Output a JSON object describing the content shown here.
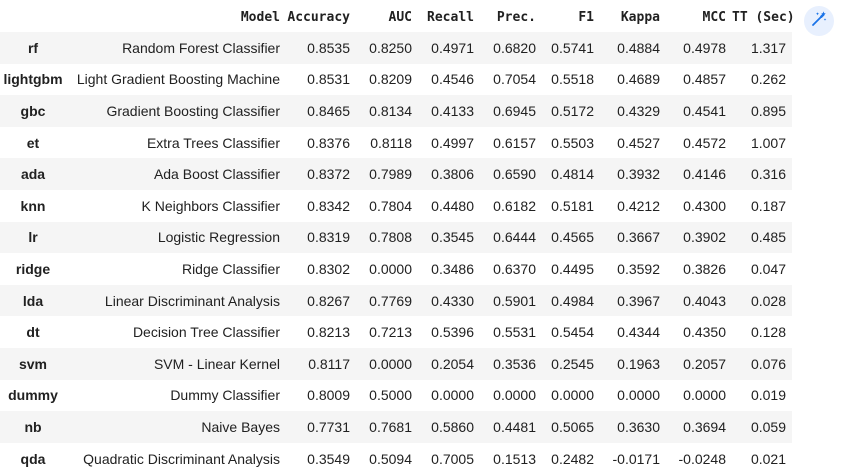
{
  "table": {
    "headers": [
      "",
      "Model",
      "Accuracy",
      "AUC",
      "Recall",
      "Prec.",
      "F1",
      "Kappa",
      "MCC",
      "TT (Sec)"
    ],
    "rows": [
      {
        "id": "rf",
        "model": "Random Forest Classifier",
        "accuracy": "0.8535",
        "auc": "0.8250",
        "recall": "0.4971",
        "prec": "0.6820",
        "f1": "0.5741",
        "kappa": "0.4884",
        "mcc": "0.4978",
        "tt": "1.317"
      },
      {
        "id": "lightgbm",
        "model": "Light Gradient Boosting Machine",
        "accuracy": "0.8531",
        "auc": "0.8209",
        "recall": "0.4546",
        "prec": "0.7054",
        "f1": "0.5518",
        "kappa": "0.4689",
        "mcc": "0.4857",
        "tt": "0.262"
      },
      {
        "id": "gbc",
        "model": "Gradient Boosting Classifier",
        "accuracy": "0.8465",
        "auc": "0.8134",
        "recall": "0.4133",
        "prec": "0.6945",
        "f1": "0.5172",
        "kappa": "0.4329",
        "mcc": "0.4541",
        "tt": "0.895"
      },
      {
        "id": "et",
        "model": "Extra Trees Classifier",
        "accuracy": "0.8376",
        "auc": "0.8118",
        "recall": "0.4997",
        "prec": "0.6157",
        "f1": "0.5503",
        "kappa": "0.4527",
        "mcc": "0.4572",
        "tt": "1.007"
      },
      {
        "id": "ada",
        "model": "Ada Boost Classifier",
        "accuracy": "0.8372",
        "auc": "0.7989",
        "recall": "0.3806",
        "prec": "0.6590",
        "f1": "0.4814",
        "kappa": "0.3932",
        "mcc": "0.4146",
        "tt": "0.316"
      },
      {
        "id": "knn",
        "model": "K Neighbors Classifier",
        "accuracy": "0.8342",
        "auc": "0.7804",
        "recall": "0.4480",
        "prec": "0.6182",
        "f1": "0.5181",
        "kappa": "0.4212",
        "mcc": "0.4300",
        "tt": "0.187"
      },
      {
        "id": "lr",
        "model": "Logistic Regression",
        "accuracy": "0.8319",
        "auc": "0.7808",
        "recall": "0.3545",
        "prec": "0.6444",
        "f1": "0.4565",
        "kappa": "0.3667",
        "mcc": "0.3902",
        "tt": "0.485"
      },
      {
        "id": "ridge",
        "model": "Ridge Classifier",
        "accuracy": "0.8302",
        "auc": "0.0000",
        "recall": "0.3486",
        "prec": "0.6370",
        "f1": "0.4495",
        "kappa": "0.3592",
        "mcc": "0.3826",
        "tt": "0.047"
      },
      {
        "id": "lda",
        "model": "Linear Discriminant Analysis",
        "accuracy": "0.8267",
        "auc": "0.7769",
        "recall": "0.4330",
        "prec": "0.5901",
        "f1": "0.4984",
        "kappa": "0.3967",
        "mcc": "0.4043",
        "tt": "0.028"
      },
      {
        "id": "dt",
        "model": "Decision Tree Classifier",
        "accuracy": "0.8213",
        "auc": "0.7213",
        "recall": "0.5396",
        "prec": "0.5531",
        "f1": "0.5454",
        "kappa": "0.4344",
        "mcc": "0.4350",
        "tt": "0.128"
      },
      {
        "id": "svm",
        "model": "SVM - Linear Kernel",
        "accuracy": "0.8117",
        "auc": "0.0000",
        "recall": "0.2054",
        "prec": "0.3536",
        "f1": "0.2545",
        "kappa": "0.1963",
        "mcc": "0.2057",
        "tt": "0.076"
      },
      {
        "id": "dummy",
        "model": "Dummy Classifier",
        "accuracy": "0.8009",
        "auc": "0.5000",
        "recall": "0.0000",
        "prec": "0.0000",
        "f1": "0.0000",
        "kappa": "0.0000",
        "mcc": "0.0000",
        "tt": "0.019"
      },
      {
        "id": "nb",
        "model": "Naive Bayes",
        "accuracy": "0.7731",
        "auc": "0.7681",
        "recall": "0.5860",
        "prec": "0.4481",
        "f1": "0.5065",
        "kappa": "0.3630",
        "mcc": "0.3694",
        "tt": "0.059"
      },
      {
        "id": "qda",
        "model": "Quadratic Discriminant Analysis",
        "accuracy": "0.3549",
        "auc": "0.5094",
        "recall": "0.7005",
        "prec": "0.1513",
        "f1": "0.2482",
        "kappa": "-0.0171",
        "mcc": "-0.0248",
        "tt": "0.021"
      }
    ]
  },
  "toolbar": {
    "magic_icon": "magic-wand-icon",
    "accent": "#1a73e8"
  }
}
